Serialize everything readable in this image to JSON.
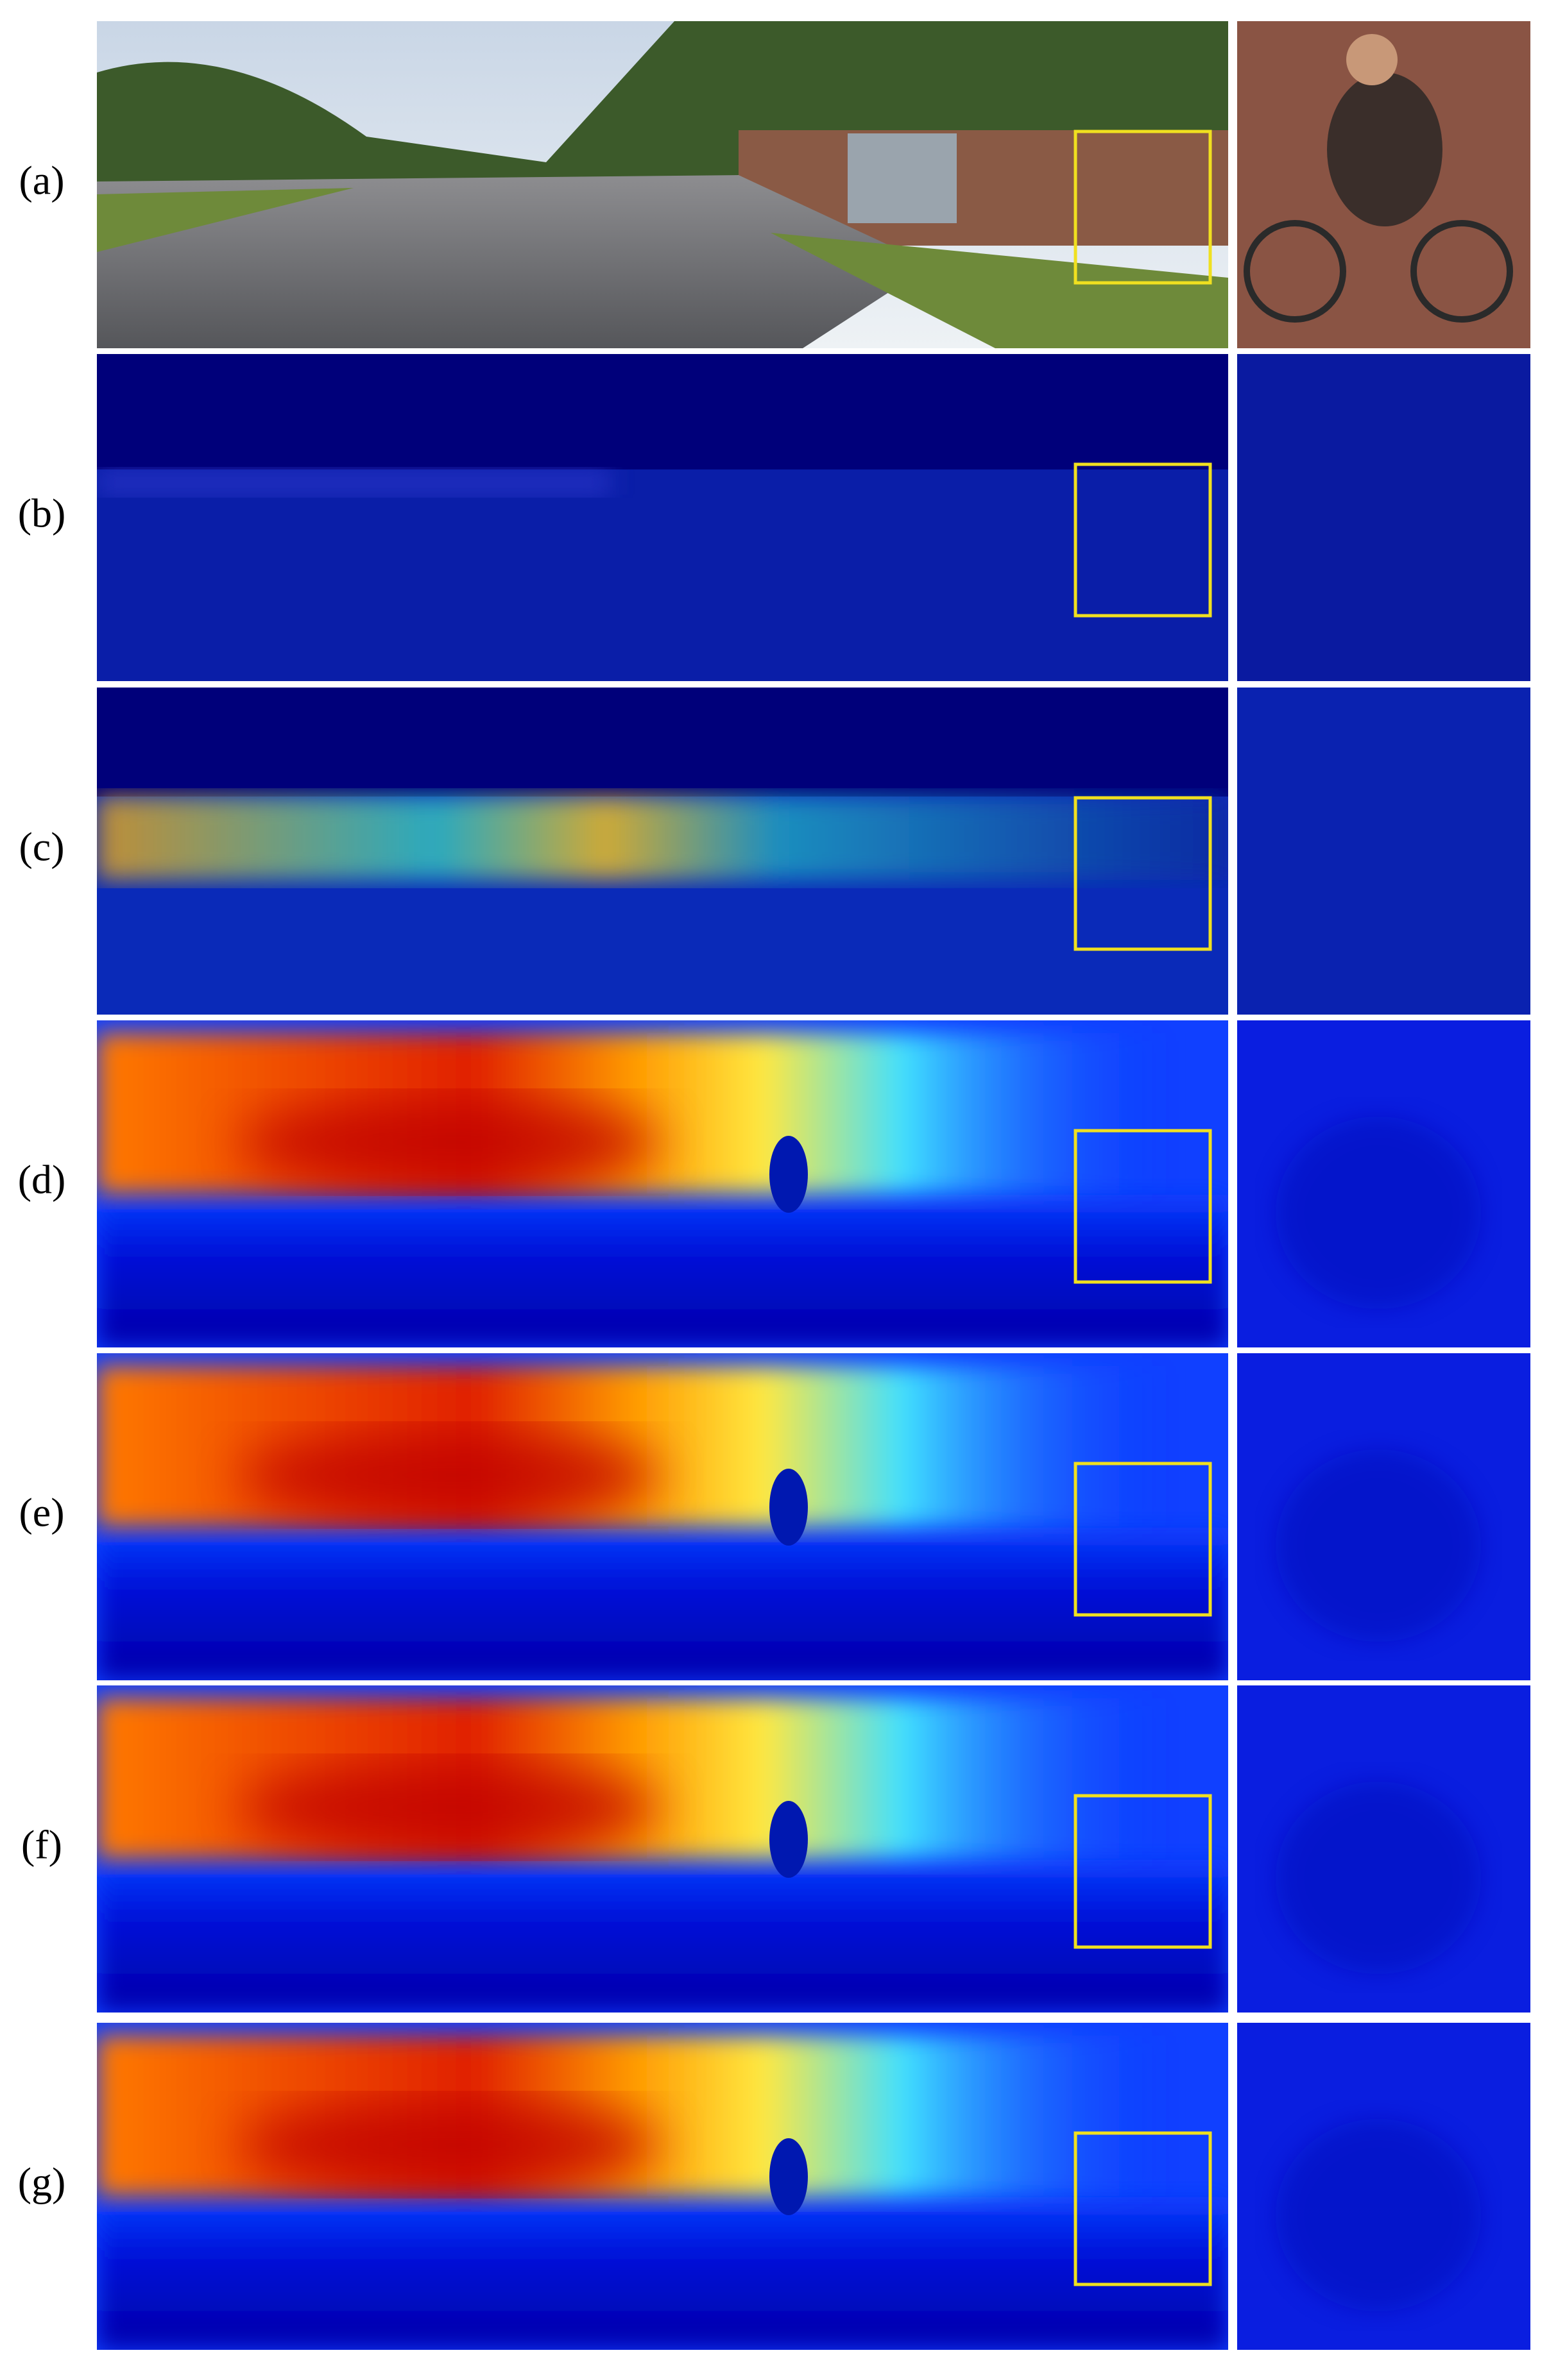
{
  "rows": [
    {
      "label": "(a)"
    },
    {
      "label": "(b)"
    },
    {
      "label": "(c)"
    },
    {
      "label": "(d)"
    },
    {
      "label": "(e)"
    },
    {
      "label": "(f)"
    },
    {
      "label": "(g)"
    }
  ]
}
